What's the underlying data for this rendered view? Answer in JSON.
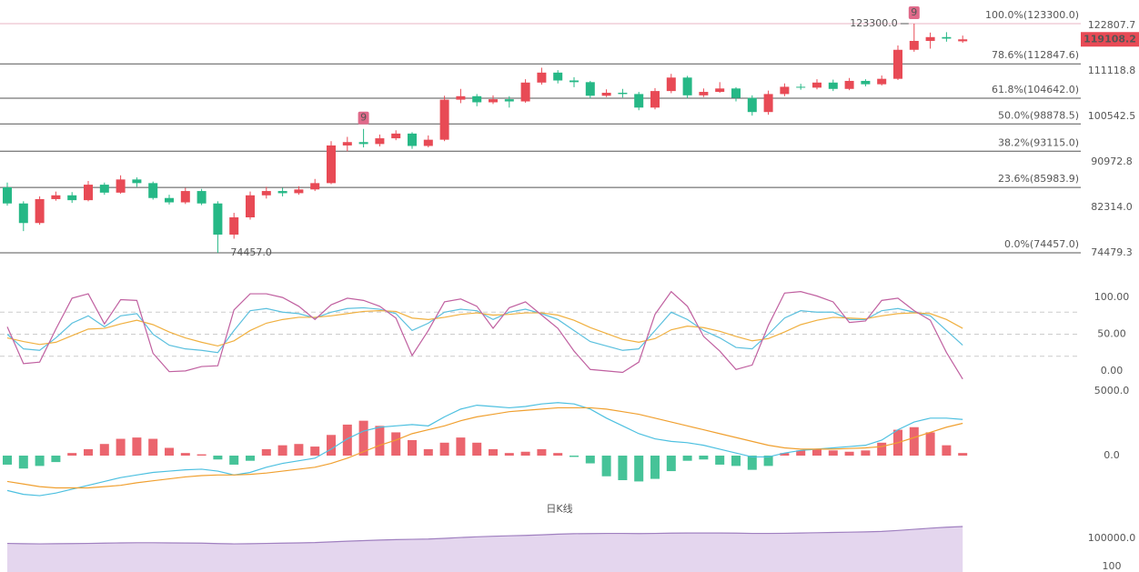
{
  "chart_data": [
    {
      "type": "candlestick",
      "log_scale": true,
      "ylim": [
        73420,
        128590
      ],
      "up_color": "#e84a55",
      "down_color": "#26b886",
      "open": [
        86000,
        83000,
        79500,
        83800,
        84500,
        83600,
        86500,
        85000,
        87500,
        86800,
        84000,
        83200,
        85300,
        83000,
        77500,
        80500,
        84500,
        85300,
        84900,
        85600,
        86800,
        94300,
        95000,
        94600,
        95800,
        96800,
        94200,
        95500,
        104300,
        105100,
        103700,
        104400,
        103900,
        108300,
        110700,
        108800,
        108400,
        105200,
        105900,
        105600,
        102500,
        106300,
        109500,
        105300,
        106100,
        106900,
        104700,
        101500,
        105600,
        107300,
        107100,
        108300,
        106800,
        108700,
        107900,
        109200,
        116400,
        118700,
        119700,
        118600
      ],
      "high": [
        86900,
        83400,
        84300,
        85200,
        85100,
        87200,
        86900,
        88300,
        87900,
        87100,
        84600,
        85900,
        85700,
        83400,
        81300,
        85200,
        86100,
        85900,
        86200,
        87600,
        95200,
        96100,
        97800,
        96600,
        97500,
        97100,
        96400,
        105200,
        106800,
        105600,
        105300,
        105100,
        109100,
        111900,
        111300,
        109600,
        108700,
        106700,
        106800,
        106100,
        107000,
        110400,
        109900,
        106900,
        108400,
        107200,
        105300,
        106400,
        108100,
        108000,
        109100,
        109000,
        109400,
        109100,
        110000,
        117500,
        123300,
        120900,
        121000,
        120100
      ],
      "low": [
        82600,
        78100,
        79200,
        83500,
        83100,
        83400,
        84600,
        84800,
        86100,
        83700,
        82800,
        82900,
        82700,
        74457,
        76800,
        80100,
        83900,
        84300,
        84600,
        85300,
        86600,
        93100,
        93900,
        94100,
        95400,
        93600,
        93900,
        95200,
        103500,
        102800,
        103300,
        102500,
        103600,
        107800,
        108100,
        107200,
        104600,
        104900,
        104800,
        101900,
        102100,
        105800,
        104600,
        104900,
        105900,
        103900,
        100700,
        100900,
        105100,
        106600,
        106700,
        106300,
        106500,
        107400,
        107600,
        108900,
        115900,
        116700,
        118500,
        118200
      ],
      "close": [
        83000,
        79500,
        83800,
        84500,
        83600,
        86500,
        85000,
        87500,
        86800,
        84000,
        83200,
        85300,
        83000,
        77500,
        80500,
        84500,
        85300,
        84900,
        85600,
        86800,
        94300,
        95000,
        94600,
        95800,
        96800,
        94200,
        95500,
        104300,
        105100,
        103700,
        104400,
        103900,
        108300,
        110700,
        108800,
        108400,
        105200,
        105900,
        105600,
        102500,
        106300,
        109500,
        105300,
        106100,
        106900,
        104700,
        101500,
        105600,
        107300,
        107100,
        108300,
        106800,
        108700,
        107900,
        109200,
        116400,
        118700,
        119700,
        119300,
        119108.2
      ],
      "signals": [
        null,
        null,
        null,
        null,
        null,
        null,
        null,
        null,
        null,
        null,
        null,
        null,
        null,
        null,
        null,
        null,
        null,
        null,
        null,
        null,
        null,
        null,
        "9",
        null,
        null,
        null,
        null,
        null,
        null,
        null,
        null,
        null,
        null,
        null,
        null,
        null,
        null,
        null,
        null,
        null,
        null,
        null,
        null,
        null,
        null,
        null,
        null,
        null,
        null,
        null,
        null,
        null,
        null,
        null,
        null,
        null,
        "9",
        null,
        null,
        null
      ],
      "yticks": [
        122807.7,
        111118.8,
        100542.5,
        90972.8,
        {
          "value": 82314,
          "label": "82314.0"
        },
        74479.3
      ],
      "fib_levels": [
        {
          "value": 123300,
          "label": "100.0%(123300.0)"
        },
        {
          "value": 112847.6,
          "label": "78.6%(112847.6)"
        },
        {
          "value": 104642,
          "label": "61.8%(104642.0)"
        },
        {
          "value": 98878.5,
          "label": "50.0%(98878.5)"
        },
        {
          "value": 93115,
          "label": "38.2%(93115.0)"
        },
        {
          "value": 85983.9,
          "label": "23.6%(85983.9)"
        },
        {
          "value": 74457,
          "label": "0.0%(74457.0)"
        }
      ],
      "high_label": {
        "value": 123300,
        "label": "123300.0"
      },
      "low_label": {
        "value": 74457,
        "label": "74457.0"
      },
      "last_price": 119108.2
    },
    {
      "type": "line",
      "ylim": [
        -15,
        115
      ],
      "ref_lines": [
        80,
        50,
        20
      ],
      "yticks": [
        {
          "value": 100,
          "label": "100.00"
        },
        {
          "value": 50,
          "label": "50.00"
        },
        {
          "value": 0,
          "label": "0.00"
        }
      ],
      "series": [
        {
          "color": "#5bc0de",
          "values": [
            50,
            30,
            28,
            45,
            65,
            75,
            60,
            75,
            78,
            50,
            35,
            30,
            28,
            25,
            55,
            82,
            85,
            80,
            78,
            72,
            80,
            85,
            86,
            84,
            78,
            55,
            65,
            80,
            84,
            82,
            70,
            80,
            84,
            78,
            70,
            55,
            40,
            34,
            28,
            30,
            55,
            80,
            70,
            55,
            45,
            32,
            30,
            50,
            72,
            82,
            80,
            80,
            70,
            70,
            82,
            85,
            80,
            75,
            55,
            35
          ]
        },
        {
          "color": "#f0b040",
          "values": [
            45,
            40,
            36,
            39,
            48,
            57,
            58,
            64,
            69,
            63,
            53,
            45,
            39,
            34,
            41,
            55,
            65,
            70,
            73,
            73,
            75,
            78,
            81,
            82,
            81,
            72,
            70,
            73,
            77,
            79,
            76,
            77,
            79,
            79,
            76,
            69,
            59,
            51,
            43,
            39,
            44,
            56,
            61,
            59,
            54,
            47,
            41,
            44,
            53,
            63,
            69,
            73,
            72,
            71,
            75,
            78,
            79,
            78,
            70,
            58
          ]
        },
        {
          "color": "#c060a0",
          "values": [
            60,
            10,
            12,
            57,
            99,
            105,
            64,
            97,
            96,
            24,
            -1,
            0,
            6,
            7,
            83,
            105,
            105,
            100,
            88,
            70,
            90,
            99,
            96,
            88,
            72,
            21,
            55,
            94,
            98,
            88,
            58,
            86,
            94,
            76,
            58,
            27,
            2,
            0,
            -2,
            12,
            77,
            108,
            88,
            47,
            27,
            2,
            8,
            62,
            106,
            108,
            102,
            94,
            66,
            68,
            96,
            99,
            82,
            69,
            25,
            -11
          ]
        }
      ]
    },
    {
      "type": "bar",
      "ylim": [
        -3800,
        5350
      ],
      "yticks": [
        {
          "value": 5000,
          "label": "5000.0"
        },
        {
          "value": 0,
          "label": "0.0"
        }
      ],
      "series": [
        {
          "style": "bar",
          "color": "#e84a55",
          "negative_color": "#26b886",
          "values": [
            -700,
            -1000,
            -800,
            -500,
            200,
            500,
            900,
            1300,
            1400,
            1300,
            600,
            200,
            100,
            -300,
            -700,
            -400,
            500,
            800,
            900,
            700,
            1600,
            2400,
            2700,
            2300,
            1800,
            1200,
            500,
            1000,
            1400,
            1000,
            500,
            200,
            300,
            500,
            200,
            -100,
            -600,
            -1600,
            -1900,
            -2000,
            -1800,
            -1200,
            -400,
            -300,
            -700,
            -800,
            -1100,
            -800,
            200,
            400,
            500,
            400,
            300,
            400,
            1000,
            2000,
            2200,
            1800,
            800,
            200
          ]
        },
        {
          "style": "line",
          "color": "#4dc0e0",
          "values": [
            -2700,
            -3000,
            -3100,
            -2900,
            -2600,
            -2300,
            -2000,
            -1700,
            -1500,
            -1300,
            -1200,
            -1100,
            -1050,
            -1200,
            -1500,
            -1300,
            -900,
            -600,
            -400,
            -200,
            500,
            1300,
            1900,
            2200,
            2300,
            2400,
            2300,
            3000,
            3600,
            3900,
            3800,
            3700,
            3800,
            4000,
            4100,
            4000,
            3600,
            2900,
            2300,
            1700,
            1300,
            1100,
            1000,
            800,
            500,
            200,
            -100,
            -100,
            200,
            400,
            500,
            600,
            700,
            800,
            1200,
            2000,
            2600,
            2900,
            2900,
            2800
          ]
        },
        {
          "style": "line",
          "color": "#f0a030",
          "values": [
            -2000,
            -2200,
            -2400,
            -2500,
            -2500,
            -2500,
            -2400,
            -2300,
            -2100,
            -1950,
            -1800,
            -1650,
            -1550,
            -1500,
            -1500,
            -1450,
            -1350,
            -1200,
            -1050,
            -900,
            -600,
            -200,
            300,
            800,
            1200,
            1700,
            2000,
            2300,
            2700,
            3000,
            3200,
            3400,
            3500,
            3600,
            3700,
            3700,
            3700,
            3600,
            3400,
            3200,
            2900,
            2600,
            2300,
            2000,
            1700,
            1400,
            1100,
            800,
            600,
            500,
            500,
            500,
            550,
            600,
            700,
            1000,
            1400,
            1800,
            2200,
            2500
          ]
        }
      ]
    },
    {
      "type": "area",
      "title": "日K线",
      "ylim": [
        -19230,
        170900
      ],
      "yticks": [
        {
          "value": 100000,
          "label": "100000.0"
        },
        100
      ],
      "series": [
        {
          "color": "#a080c0",
          "fill": "#e4d6ee",
          "values": [
            82000,
            81000,
            80500,
            81000,
            81500,
            82000,
            83000,
            84000,
            84500,
            84500,
            84000,
            83500,
            83000,
            81500,
            80500,
            81000,
            82000,
            83000,
            84000,
            85000,
            87500,
            90000,
            92000,
            94000,
            95500,
            96500,
            97500,
            100000,
            103000,
            105500,
            107500,
            109000,
            110500,
            112500,
            115000,
            116500,
            117000,
            117500,
            117500,
            117000,
            117500,
            118500,
            119000,
            119000,
            119000,
            118500,
            117500,
            117500,
            118000,
            119000,
            120000,
            121000,
            122000,
            123000,
            124500,
            128000,
            132000,
            136000,
            139500,
            142000
          ]
        }
      ]
    }
  ]
}
